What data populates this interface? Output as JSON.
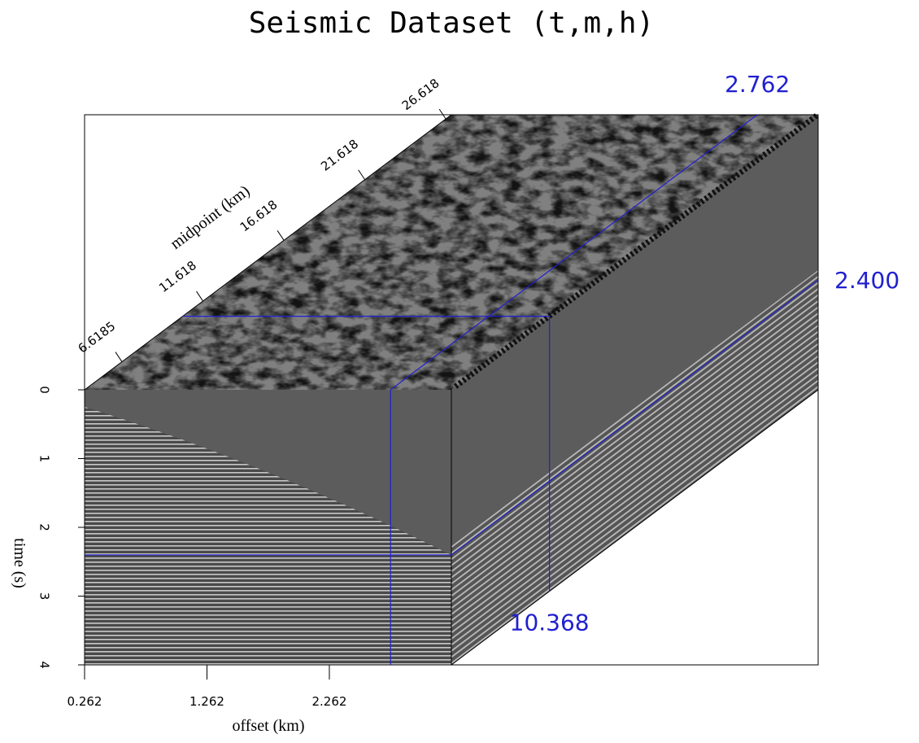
{
  "chart_data": {
    "type": "cube",
    "title": "Seismic Dataset (t,m,h)",
    "ylabel": "time (s)",
    "ylim": [
      0,
      4
    ],
    "yticks": [
      0,
      1,
      2,
      3,
      4
    ],
    "xlabel": "offset (km)",
    "xlim": [
      0.262,
      3.259
    ],
    "xticks": [
      0.262,
      1.262,
      2.262
    ],
    "zlabel": "midpoint (km)",
    "zlim": [
      4.31,
      26.96
    ],
    "zticks": [
      6.6185,
      11.618,
      16.618,
      21.618,
      26.618
    ],
    "slices": {
      "time": {
        "value": 2.4,
        "label": "2.400"
      },
      "offset": 2.762,
      "midpoint": 10.368
    },
    "slice_color": "#2020d0"
  }
}
